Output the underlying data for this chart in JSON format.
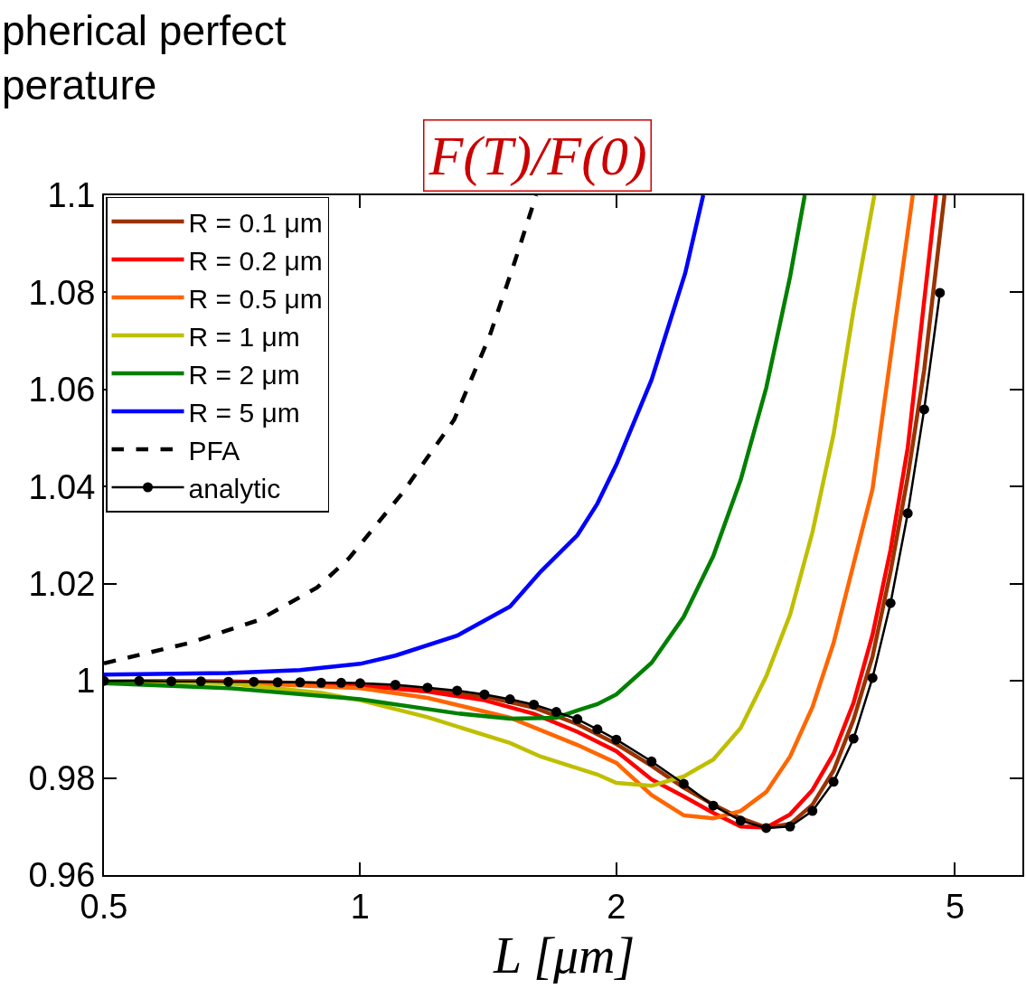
{
  "chart_data": {
    "type": "line",
    "title": "pherical perfect\nperature",
    "xlabel": "L [μm]",
    "ylabel": "F(T)/F(0)",
    "log": "x",
    "xlim": [
      0.5,
      6
    ],
    "xticks": [
      0.5,
      1,
      2,
      5
    ],
    "ylim": [
      0.96,
      1.1
    ],
    "yticks": [
      0.96,
      0.98,
      {
        "value": 1,
        "label": "1"
      },
      1.02,
      1.04,
      1.06,
      1.08,
      1.1
    ],
    "legend": "top left",
    "line_style": "solid",
    "marker": "none",
    "series": [
      {
        "name": "R = 0.1 μm",
        "color": "#993300",
        "x": [
          0.5,
          0.7,
          1.0,
          1.2,
          1.4,
          1.6,
          1.8,
          2.0,
          2.2,
          2.4,
          2.6,
          2.8,
          3.0,
          3.2,
          3.4,
          3.6,
          3.8,
          4.0,
          4.2,
          4.4,
          4.6,
          4.86
        ],
        "values": [
          1.0,
          0.9999,
          0.9993,
          0.9983,
          0.9968,
          0.9945,
          0.9911,
          0.987,
          0.9825,
          0.978,
          0.9745,
          0.9717,
          0.9698,
          0.9705,
          0.9745,
          0.9815,
          0.992,
          1.005,
          1.0225,
          1.042,
          1.064,
          1.1
        ]
      },
      {
        "name": "R = 0.2 μm",
        "color": "#ff0000",
        "x": [
          0.5,
          0.7,
          1.0,
          1.2,
          1.4,
          1.6,
          1.8,
          2.0,
          2.2,
          2.4,
          2.6,
          2.8,
          3.0,
          3.2,
          3.4,
          3.6,
          3.8,
          4.0,
          4.2,
          4.4,
          4.75
        ],
        "values": [
          1.0,
          0.9998,
          0.999,
          0.9978,
          0.996,
          0.9932,
          0.9895,
          0.9855,
          0.9797,
          0.9762,
          0.9728,
          0.97,
          0.9698,
          0.9725,
          0.9775,
          0.985,
          0.9955,
          1.0095,
          1.027,
          1.048,
          1.1
        ]
      },
      {
        "name": "R = 0.5 μm",
        "color": "#ff6600",
        "x": [
          0.5,
          0.7,
          1.0,
          1.2,
          1.5,
          1.8,
          2.0,
          2.2,
          2.4,
          2.6,
          2.8,
          3.0,
          3.2,
          3.4,
          3.6,
          4.0,
          4.46
        ],
        "values": [
          1.0,
          0.9997,
          0.9985,
          0.9965,
          0.9924,
          0.9868,
          0.9831,
          0.9765,
          0.9723,
          0.9717,
          0.9732,
          0.9771,
          0.9844,
          0.9946,
          1.0078,
          1.0395,
          1.1
        ]
      },
      {
        "name": "R = 1 μm",
        "color": "#bfbf00",
        "x": [
          0.5,
          0.7,
          0.9,
          1.0,
          1.2,
          1.5,
          1.63,
          1.9,
          2.0,
          2.2,
          2.4,
          2.6,
          2.8,
          3.0,
          3.2,
          3.4,
          3.6,
          3.8,
          4.02
        ],
        "values": [
          1.0,
          0.9995,
          0.9975,
          0.996,
          0.9925,
          0.9872,
          0.9844,
          0.9807,
          0.979,
          0.9784,
          0.9803,
          0.9838,
          0.9903,
          1.0009,
          1.0136,
          1.0306,
          1.0508,
          1.0764,
          1.1
        ]
      },
      {
        "name": "R = 2 μm",
        "color": "#008000",
        "x": [
          0.5,
          0.7,
          1.0,
          1.3,
          1.5,
          1.7,
          1.8,
          1.9,
          2.0,
          2.2,
          2.4,
          2.6,
          2.8,
          3.0,
          3.2,
          3.33
        ],
        "values": [
          0.9995,
          0.9985,
          0.9962,
          0.9933,
          0.9922,
          0.9924,
          0.9939,
          0.9952,
          0.9972,
          1.0037,
          1.0132,
          1.0257,
          1.0414,
          1.0603,
          1.0832,
          1.1
        ]
      },
      {
        "name": "R = 5 μm",
        "color": "#0000ff",
        "x": [
          0.5,
          0.7,
          0.85,
          1.0,
          1.1,
          1.3,
          1.5,
          1.63,
          1.8,
          1.9,
          2.0,
          2.2,
          2.41,
          2.53
        ],
        "values": [
          1.0013,
          1.0016,
          1.0022,
          1.0035,
          1.0052,
          1.0093,
          1.0153,
          1.0225,
          1.03,
          1.0365,
          1.0445,
          1.062,
          1.084,
          1.1
        ]
      },
      {
        "name": "PFA",
        "color": "#000000",
        "line_style": "dashed",
        "x": [
          0.5,
          0.63,
          0.76,
          0.89,
          0.97,
          1.12,
          1.29,
          1.42,
          1.52,
          1.61
        ],
        "values": [
          1.0036,
          1.0078,
          1.0125,
          1.0192,
          1.0252,
          1.0386,
          1.0538,
          1.0711,
          1.0864,
          1.1
        ]
      },
      {
        "name": "analytic",
        "color": "#000000",
        "marker": "circle",
        "x": [
          0.5,
          0.55,
          0.6,
          0.65,
          0.7,
          0.75,
          0.8,
          0.85,
          0.9,
          0.95,
          1.0,
          1.1,
          1.2,
          1.3,
          1.4,
          1.5,
          1.6,
          1.7,
          1.8,
          1.9,
          2.0,
          2.2,
          2.4,
          2.6,
          2.8,
          3.0,
          3.2,
          3.4,
          3.6,
          3.8,
          4.0,
          4.2,
          4.4,
          4.6,
          4.8
        ],
        "values": [
          1.0,
          1.0,
          0.9999,
          0.9999,
          0.9998,
          0.9998,
          0.9997,
          0.9997,
          0.9996,
          0.9996,
          0.9995,
          0.9992,
          0.9986,
          0.998,
          0.9972,
          0.9962,
          0.9951,
          0.9936,
          0.9921,
          0.99,
          0.9879,
          0.9834,
          0.9788,
          0.9743,
          0.9712,
          0.9697,
          0.97,
          0.9732,
          0.9792,
          0.9881,
          1.0006,
          1.016,
          1.0345,
          1.0559,
          1.0799
        ]
      }
    ]
  }
}
